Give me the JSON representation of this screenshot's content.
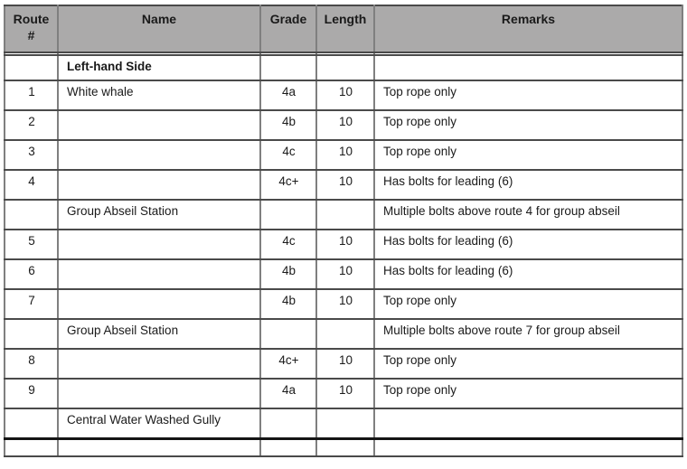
{
  "table": {
    "headers": [
      "Route #",
      "Name",
      "Grade",
      "Length",
      "Remarks"
    ],
    "rows": [
      {
        "type": "spacer",
        "num": "",
        "name": "",
        "grade": "",
        "length": "",
        "remarks": ""
      },
      {
        "type": "section",
        "num": "",
        "name": "Left-hand Side",
        "grade": "",
        "length": "",
        "remarks": ""
      },
      {
        "type": "route",
        "num": "1",
        "name": "White whale",
        "grade": "4a",
        "length": "10",
        "remarks": "Top rope only"
      },
      {
        "type": "route",
        "num": "2",
        "name": "",
        "grade": "4b",
        "length": "10",
        "remarks": "Top rope only"
      },
      {
        "type": "route",
        "num": "3",
        "name": "",
        "grade": "4c",
        "length": "10",
        "remarks": "Top rope only"
      },
      {
        "type": "route",
        "num": "4",
        "name": "",
        "grade": "4c+",
        "length": "10",
        "remarks": "Has bolts for leading (6)"
      },
      {
        "type": "label",
        "num": "",
        "name": "Group Abseil Station",
        "grade": "",
        "length": "",
        "remarks": "Multiple bolts above route 4 for group abseil"
      },
      {
        "type": "route",
        "num": "5",
        "name": "",
        "grade": "4c",
        "length": "10",
        "remarks": "Has bolts for leading (6)"
      },
      {
        "type": "route",
        "num": "6",
        "name": "",
        "grade": "4b",
        "length": "10",
        "remarks": "Has bolts for leading (6)"
      },
      {
        "type": "route",
        "num": "7",
        "name": "",
        "grade": "4b",
        "length": "10",
        "remarks": "Top rope only"
      },
      {
        "type": "label",
        "num": "",
        "name": "Group Abseil Station",
        "grade": "",
        "length": "",
        "remarks": "Multiple bolts above route 7 for group abseil"
      },
      {
        "type": "route",
        "num": "8",
        "name": "",
        "grade": "4c+",
        "length": "10",
        "remarks": "Top rope only"
      },
      {
        "type": "route",
        "num": "9",
        "name": "",
        "grade": "4a",
        "length": "10",
        "remarks": "Top rope only"
      },
      {
        "type": "label",
        "num": "",
        "name": "Central Water Washed Gully",
        "grade": "",
        "length": "",
        "remarks": ""
      },
      {
        "type": "partial",
        "num": "",
        "name": "",
        "grade": "",
        "length": "",
        "remarks": ""
      }
    ],
    "colors": {
      "header_bg": "#ABAAAA",
      "horizontal_border": "#4a4a4a",
      "vertical_border": "#7f7f7f",
      "outer_border": "#2e2e2e",
      "partial_row_top_border": "#151515",
      "text": "#1a1a1a"
    }
  }
}
